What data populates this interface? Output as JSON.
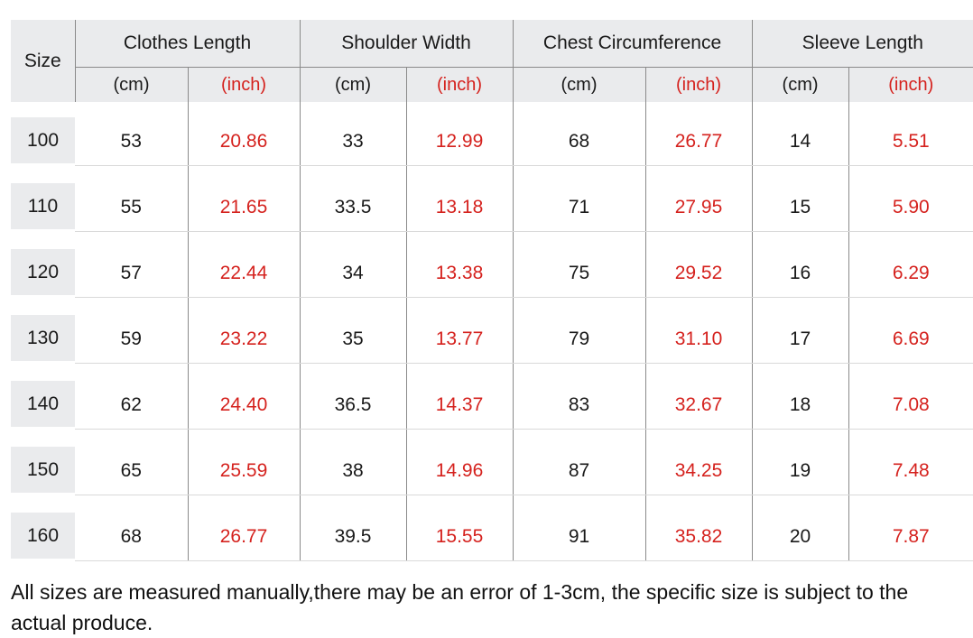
{
  "table": {
    "size_header": "Size",
    "groups": [
      {
        "label": "Clothes Length"
      },
      {
        "label": "Shoulder Width"
      },
      {
        "label": "Chest Circumference"
      },
      {
        "label": "Sleeve Length"
      }
    ],
    "unit_cm": "(cm)",
    "unit_inch": "(inch)",
    "rows": [
      {
        "size": "100",
        "values": [
          "53",
          "20.86",
          "33",
          "12.99",
          "68",
          "26.77",
          "14",
          "5.51"
        ]
      },
      {
        "size": "110",
        "values": [
          "55",
          "21.65",
          "33.5",
          "13.18",
          "71",
          "27.95",
          "15",
          "5.90"
        ]
      },
      {
        "size": "120",
        "values": [
          "57",
          "22.44",
          "34",
          "13.38",
          "75",
          "29.52",
          "16",
          "6.29"
        ]
      },
      {
        "size": "130",
        "values": [
          "59",
          "23.22",
          "35",
          "13.77",
          "79",
          "31.10",
          "17",
          "6.69"
        ]
      },
      {
        "size": "140",
        "values": [
          "62",
          "24.40",
          "36.5",
          "14.37",
          "83",
          "32.67",
          "18",
          "7.08"
        ]
      },
      {
        "size": "150",
        "values": [
          "65",
          "25.59",
          "38",
          "14.96",
          "87",
          "34.25",
          "19",
          "7.48"
        ]
      },
      {
        "size": "160",
        "values": [
          "68",
          "26.77",
          "39.5",
          "15.55",
          "91",
          "35.82",
          "20",
          "7.87"
        ]
      }
    ]
  },
  "footer": {
    "note": "All sizes are measured manually,there may be an error of 1-3cm, the specific size is subject to the actual produce."
  },
  "colors": {
    "accent_red": "#d5221e",
    "header_bg": "#eaebed",
    "grid_dark": "#8a8a8a",
    "grid_light": "#d9d9d9",
    "text": "#1a1a1a"
  }
}
